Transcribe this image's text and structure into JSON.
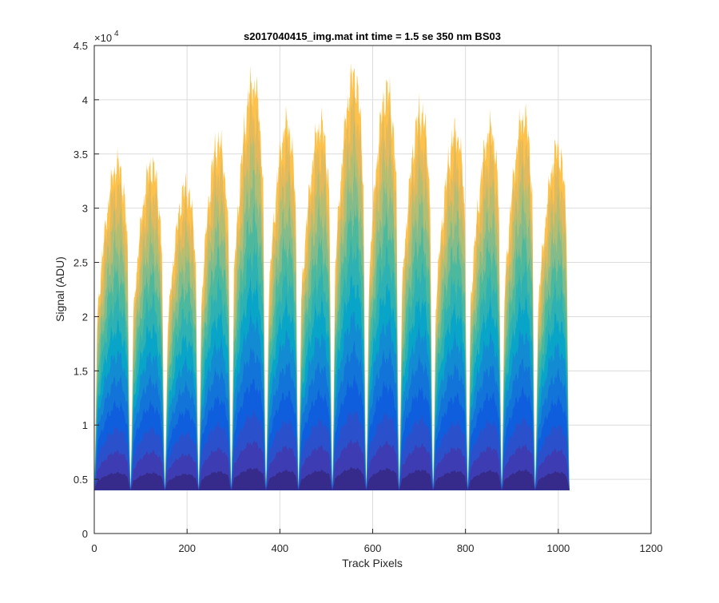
{
  "chart_data": {
    "type": "area",
    "title": "s2017040415_img.mat int time = 1.5 se  350 nm BS03",
    "xlabel": "Track Pixels",
    "ylabel": "Signal (ADU)",
    "xlim": [
      0,
      1200
    ],
    "ylim": [
      0,
      45000
    ],
    "y_exponent_label": "×10",
    "y_exponent_power": "4",
    "x_ticks": [
      0,
      200,
      400,
      600,
      800,
      1000,
      1200
    ],
    "x_tick_labels": [
      "0",
      "200",
      "400",
      "600",
      "800",
      "1000",
      "1200"
    ],
    "y_ticks": [
      0,
      5000,
      10000,
      15000,
      20000,
      25000,
      30000,
      35000,
      40000,
      45000
    ],
    "y_tick_labels": [
      "0",
      "0.5",
      "1",
      "1.5",
      "2",
      "2.5",
      "3",
      "3.5",
      "4",
      "4.5"
    ],
    "grid": true,
    "baseline": 4000,
    "x_extent": [
      0,
      1024
    ],
    "track_gaps": [
      78,
      152,
      225,
      295,
      370,
      440,
      513,
      586,
      657,
      730,
      805,
      878,
      950
    ],
    "track_peaks": [
      {
        "x": 58,
        "y": 36200
      },
      {
        "x": 140,
        "y": 35400
      },
      {
        "x": 210,
        "y": 33600
      },
      {
        "x": 285,
        "y": 37600
      },
      {
        "x": 353,
        "y": 44000
      },
      {
        "x": 420,
        "y": 40500
      },
      {
        "x": 490,
        "y": 40700
      },
      {
        "x": 570,
        "y": 44600
      },
      {
        "x": 640,
        "y": 43300
      },
      {
        "x": 710,
        "y": 41500
      },
      {
        "x": 780,
        "y": 40000
      },
      {
        "x": 850,
        "y": 40900
      },
      {
        "x": 925,
        "y": 41800
      },
      {
        "x": 1000,
        "y": 38300
      }
    ],
    "series_colors": [
      "#352a87",
      "#3f3bb0",
      "#2c50c9",
      "#0f5cdd",
      "#1271d8",
      "#1389d2",
      "#06a4ca",
      "#2ab0b5",
      "#48b89f",
      "#7fbc8c",
      "#b0be75",
      "#e0b95e",
      "#fdbd3d"
    ]
  }
}
